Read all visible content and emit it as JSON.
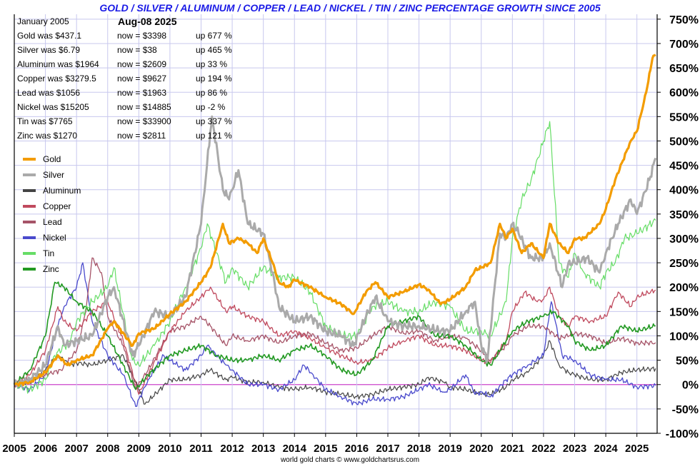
{
  "title": "GOLD / SILVER / ALUMINUM / COPPER / LEAD / NICKEL / TIN / ZINC PERCENTAGE GROWTH SINCE 2005",
  "info_panel": {
    "start_label": "January 2005",
    "date": "Aug-08  2025",
    "rows": [
      {
        "was": "Gold was $437.1",
        "now": "now = $3398",
        "change": "up 677 %"
      },
      {
        "was": "Silver was $6.79",
        "now": "now = $38",
        "change": "up 465 %"
      },
      {
        "was": "Aluminum was $1964",
        "now": "now = $2609",
        "change": "up 33 %"
      },
      {
        "was": "Copper was $3279.5",
        "now": "now = $9627",
        "change": "up 194 %"
      },
      {
        "was": "Lead was $1056",
        "now": "now = $1963",
        "change": "up 86 %"
      },
      {
        "was": "Nickel was $15205",
        "now": "now = $14885",
        "change": "up -2 %"
      },
      {
        "was": "Tin was $7765",
        "now": "now = $33900",
        "change": "up 337 %"
      },
      {
        "was": "Zinc was $1270",
        "now": "now = $2811",
        "change": "up 121 %"
      }
    ]
  },
  "credit": "world gold charts © www.goldchartsrus.com",
  "chart_data": {
    "type": "line",
    "x_ticks": [
      "2005",
      "2006",
      "2007",
      "2008",
      "2009",
      "2010",
      "2011",
      "2012",
      "2013",
      "2014",
      "2015",
      "2016",
      "2017",
      "2018",
      "2019",
      "2020",
      "2021",
      "2022",
      "2023",
      "2024",
      "2025"
    ],
    "y_ticks": [
      "750%",
      "700%",
      "650%",
      "600%",
      "550%",
      "500%",
      "450%",
      "400%",
      "350%",
      "300%",
      "250%",
      "200%",
      "150%",
      "100%",
      "50%",
      "0%",
      "-50%",
      "-100%"
    ],
    "xlim": [
      2005.0,
      2025.65
    ],
    "ylim": [
      -100,
      760
    ],
    "grid": true,
    "legend_position": "left",
    "colors": {
      "grid": "#c8c8ee",
      "zero_line": "#cc44cc"
    },
    "series": [
      {
        "name": "Gold",
        "color": "#f39c00",
        "width": 3.2,
        "x": [
          2005,
          2005.5,
          2006,
          2006.4,
          2006.7,
          2007,
          2007.5,
          2008,
          2008.2,
          2008.8,
          2009,
          2009.5,
          2010,
          2010.5,
          2011,
          2011.3,
          2011.7,
          2011.9,
          2012.2,
          2012.5,
          2012.8,
          2013,
          2013.3,
          2013.5,
          2013.8,
          2014,
          2014.5,
          2015,
          2015.5,
          2015.9,
          2016.3,
          2016.6,
          2017,
          2017.5,
          2018,
          2018.3,
          2018.7,
          2019,
          2019.5,
          2019.8,
          2020,
          2020.3,
          2020.6,
          2020.8,
          2021,
          2021.3,
          2021.6,
          2022,
          2022.2,
          2022.5,
          2022.8,
          2023,
          2023.3,
          2023.8,
          2024,
          2024.3,
          2024.8,
          2025,
          2025.3,
          2025.5,
          2025.6
        ],
        "y": [
          0,
          5,
          25,
          60,
          40,
          50,
          60,
          115,
          130,
          80,
          105,
          115,
          145,
          170,
          210,
          240,
          330,
          290,
          300,
          290,
          270,
          300,
          250,
          210,
          200,
          215,
          200,
          180,
          165,
          145,
          190,
          210,
          180,
          190,
          205,
          195,
          165,
          175,
          200,
          235,
          240,
          250,
          330,
          300,
          320,
          270,
          290,
          260,
          330,
          290,
          270,
          300,
          300,
          330,
          360,
          420,
          500,
          520,
          600,
          670,
          677
        ]
      },
      {
        "name": "Silver",
        "color": "#aaaaaa",
        "width": 3.0,
        "x": [
          2005,
          2005.5,
          2006,
          2006.4,
          2006.6,
          2007,
          2007.5,
          2008,
          2008.2,
          2008.8,
          2009,
          2009.5,
          2010,
          2010.5,
          2011,
          2011.3,
          2011.35,
          2011.7,
          2011.9,
          2012.2,
          2012.5,
          2013,
          2013.3,
          2013.5,
          2014,
          2014.5,
          2015,
          2015.5,
          2015.9,
          2016.3,
          2016.6,
          2017,
          2017.5,
          2018,
          2018.7,
          2019,
          2019.5,
          2019.8,
          2020,
          2020.2,
          2020.6,
          2020.8,
          2021,
          2021.2,
          2021.6,
          2022,
          2022.2,
          2022.6,
          2022.8,
          2023,
          2023.4,
          2023.8,
          2024,
          2024.4,
          2024.8,
          2025,
          2025.4,
          2025.6
        ],
        "y": [
          0,
          10,
          40,
          120,
          80,
          90,
          100,
          180,
          200,
          60,
          80,
          150,
          140,
          180,
          330,
          520,
          550,
          400,
          380,
          440,
          330,
          310,
          230,
          160,
          130,
          140,
          110,
          100,
          80,
          140,
          180,
          130,
          120,
          120,
          110,
          110,
          150,
          170,
          80,
          50,
          310,
          300,
          330,
          310,
          260,
          260,
          290,
          200,
          250,
          250,
          260,
          230,
          270,
          330,
          380,
          350,
          420,
          465
        ]
      },
      {
        "name": "Aluminum",
        "color": "#444444",
        "width": 1.2,
        "x": [
          2005,
          2005.5,
          2006,
          2006.4,
          2006.8,
          2007,
          2007.5,
          2008,
          2008.5,
          2009,
          2009.2,
          2010,
          2010.5,
          2011,
          2011.3,
          2011.8,
          2012,
          2012.5,
          2013,
          2013.5,
          2014,
          2014.5,
          2015,
          2015.5,
          2016,
          2016.5,
          2017,
          2017.5,
          2018,
          2018.3,
          2018.8,
          2019,
          2019.5,
          2020,
          2020.3,
          2020.8,
          2021,
          2021.5,
          2022,
          2022.2,
          2022.5,
          2022.8,
          2023,
          2023.5,
          2024,
          2024.5,
          2025,
          2025.6
        ],
        "y": [
          0,
          5,
          30,
          60,
          40,
          45,
          40,
          50,
          60,
          -10,
          -40,
          10,
          10,
          20,
          30,
          10,
          15,
          5,
          5,
          -5,
          -10,
          -5,
          -15,
          -20,
          -25,
          -20,
          -10,
          -5,
          0,
          15,
          5,
          -5,
          -10,
          -20,
          -20,
          -5,
          10,
          25,
          60,
          90,
          40,
          25,
          20,
          10,
          10,
          25,
          30,
          33
        ]
      },
      {
        "name": "Copper",
        "color": "#c04a5e",
        "width": 1.3,
        "x": [
          2005,
          2005.5,
          2006,
          2006.4,
          2006.6,
          2007,
          2007.5,
          2008,
          2008.5,
          2009,
          2009.3,
          2010,
          2010.5,
          2011,
          2011.3,
          2011.8,
          2012,
          2012.5,
          2013,
          2013.5,
          2014,
          2014.5,
          2015,
          2015.5,
          2016,
          2016.5,
          2017,
          2017.5,
          2018,
          2018.5,
          2019,
          2019.5,
          2020,
          2020.3,
          2020.8,
          2021,
          2021.4,
          2021.8,
          2022,
          2022.2,
          2022.5,
          2022.8,
          2023,
          2023.5,
          2024,
          2024.4,
          2024.8,
          2025,
          2025.6
        ],
        "y": [
          0,
          20,
          70,
          160,
          130,
          110,
          150,
          170,
          90,
          -20,
          20,
          110,
          150,
          180,
          200,
          150,
          160,
          140,
          130,
          100,
          110,
          95,
          75,
          60,
          45,
          50,
          75,
          90,
          100,
          80,
          80,
          70,
          50,
          45,
          90,
          150,
          190,
          170,
          175,
          200,
          140,
          120,
          140,
          130,
          140,
          190,
          160,
          180,
          194
        ]
      },
      {
        "name": "Lead",
        "color": "#a65468",
        "width": 1.3,
        "x": [
          2005,
          2005.5,
          2006,
          2006.5,
          2007,
          2007.3,
          2007.5,
          2007.8,
          2008,
          2008.5,
          2008.9,
          2009.3,
          2010,
          2010.5,
          2011,
          2011.3,
          2011.8,
          2012,
          2012.5,
          2013,
          2013.5,
          2014,
          2014.5,
          2015,
          2015.5,
          2016,
          2016.5,
          2017,
          2017.5,
          2018,
          2018.5,
          2019,
          2019.5,
          2020,
          2020.3,
          2020.8,
          2021,
          2021.5,
          2022,
          2022.5,
          2023,
          2023.5,
          2024,
          2024.5,
          2025,
          2025.6
        ],
        "y": [
          0,
          10,
          20,
          30,
          70,
          150,
          260,
          230,
          140,
          80,
          -10,
          30,
          110,
          120,
          140,
          120,
          80,
          100,
          90,
          100,
          85,
          100,
          105,
          85,
          70,
          75,
          100,
          120,
          105,
          110,
          90,
          100,
          95,
          70,
          50,
          80,
          100,
          120,
          120,
          95,
          105,
          100,
          85,
          95,
          85,
          86
        ]
      },
      {
        "name": "Nickel",
        "color": "#4a4acc",
        "width": 1.3,
        "x": [
          2005,
          2005.5,
          2006,
          2006.3,
          2006.6,
          2007,
          2007.2,
          2007.5,
          2008,
          2008.5,
          2008.9,
          2009.3,
          2009.8,
          2010,
          2010.5,
          2011,
          2011.2,
          2011.8,
          2012,
          2012.5,
          2013,
          2013.5,
          2014,
          2014.3,
          2014.6,
          2015,
          2015.5,
          2016,
          2016.5,
          2017,
          2017.5,
          2018,
          2018.3,
          2018.8,
          2019,
          2019.5,
          2019.8,
          2020,
          2020.3,
          2020.8,
          2021,
          2021.5,
          2022,
          2022.2,
          2022.25,
          2022.6,
          2023,
          2023.5,
          2024,
          2024.5,
          2025,
          2025.6
        ],
        "y": [
          0,
          -10,
          20,
          100,
          160,
          200,
          250,
          130,
          60,
          20,
          -45,
          10,
          60,
          50,
          30,
          60,
          80,
          40,
          30,
          0,
          0,
          -10,
          10,
          40,
          20,
          -10,
          -25,
          -40,
          -30,
          -30,
          -25,
          -10,
          0,
          -15,
          -10,
          20,
          -20,
          -15,
          -25,
          10,
          20,
          40,
          60,
          150,
          170,
          60,
          50,
          20,
          10,
          10,
          -5,
          -2
        ]
      },
      {
        "name": "Tin",
        "color": "#66dd66",
        "width": 1.2,
        "x": [
          2005,
          2005.5,
          2006,
          2006.3,
          2006.8,
          2007,
          2007.5,
          2008,
          2008.2,
          2008.8,
          2009,
          2009.5,
          2010,
          2010.5,
          2011,
          2011.2,
          2011.8,
          2012,
          2012.5,
          2013,
          2013.5,
          2014,
          2014.5,
          2015,
          2015.5,
          2016,
          2016.5,
          2017,
          2017.5,
          2018,
          2018.5,
          2019,
          2019.5,
          2020,
          2020.3,
          2020.8,
          2021,
          2021.3,
          2021.6,
          2022,
          2022.2,
          2022.5,
          2022.8,
          2023,
          2023.3,
          2023.8,
          2024,
          2024.3,
          2024.6,
          2025,
          2025.6
        ],
        "y": [
          0,
          -10,
          10,
          60,
          90,
          130,
          170,
          200,
          240,
          50,
          40,
          80,
          130,
          200,
          280,
          330,
          210,
          240,
          200,
          240,
          220,
          220,
          190,
          120,
          100,
          100,
          160,
          170,
          150,
          150,
          170,
          160,
          110,
          110,
          100,
          170,
          300,
          380,
          420,
          500,
          540,
          250,
          220,
          270,
          230,
          200,
          230,
          250,
          300,
          310,
          337
        ]
      },
      {
        "name": "Zinc",
        "color": "#229922",
        "width": 1.6,
        "x": [
          2005,
          2005.5,
          2006,
          2006.3,
          2006.6,
          2007,
          2007.5,
          2008,
          2008.5,
          2008.9,
          2009.3,
          2010,
          2010.5,
          2011,
          2011.5,
          2012,
          2012.5,
          2013,
          2013.5,
          2014,
          2014.5,
          2015,
          2015.5,
          2016,
          2016.5,
          2017,
          2017.5,
          2018,
          2018.5,
          2019,
          2019.5,
          2020,
          2020.3,
          2020.8,
          2021,
          2021.5,
          2022,
          2022.3,
          2022.8,
          2023,
          2023.5,
          2024,
          2024.5,
          2025,
          2025.6
        ],
        "y": [
          0,
          30,
          100,
          210,
          200,
          170,
          150,
          100,
          40,
          -10,
          20,
          60,
          70,
          80,
          60,
          50,
          50,
          60,
          50,
          70,
          80,
          60,
          30,
          20,
          50,
          120,
          130,
          140,
          100,
          100,
          80,
          50,
          40,
          90,
          110,
          130,
          140,
          150,
          120,
          90,
          70,
          80,
          120,
          110,
          121
        ]
      }
    ]
  }
}
